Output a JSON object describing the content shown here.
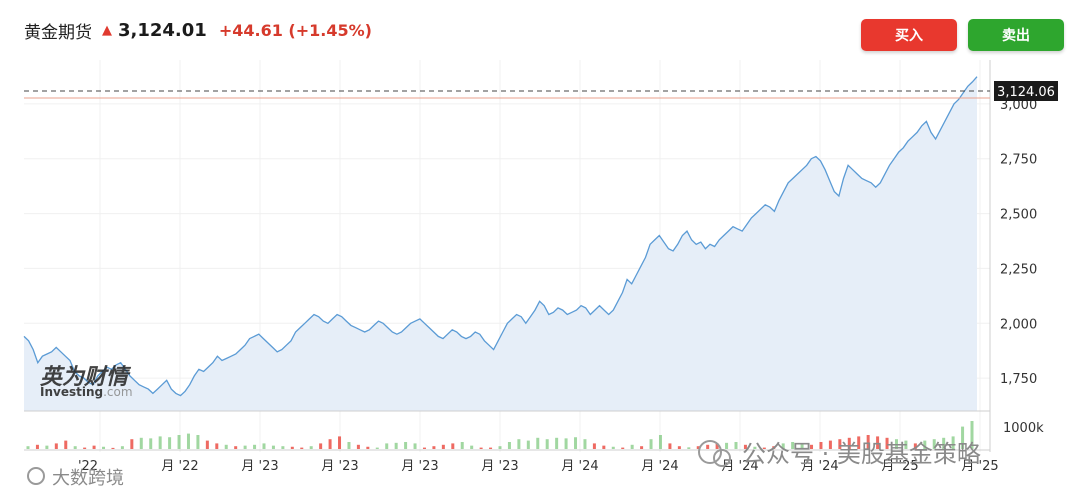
{
  "header": {
    "title": "黄金期货",
    "arrow": "▲",
    "price": "3,124.01",
    "change": "+44.61 (+1.45%)"
  },
  "buttons": {
    "buy": "买入",
    "sell": "卖出"
  },
  "price_marker": "3,124.06",
  "colors": {
    "up": "#e8382e",
    "down": "#2ea62e",
    "line": "#5b9bd5",
    "area": "#e6eef8",
    "marker_bg": "#1a1a1a"
  },
  "watermarks": {
    "logo_cn": "英为财情",
    "logo_en": "Investing",
    "logo_suffix": ".com",
    "wechat": "公众号 · 美股基金策略",
    "bottom_left": "大数跨境"
  },
  "chart_data": {
    "type": "area",
    "title": "",
    "xlabel": "",
    "ylabel": "",
    "ylim": [
      1600,
      3200
    ],
    "y_ticks": [
      "3,000",
      "2,750",
      "2,500",
      "2,250",
      "2,000",
      "1,750"
    ],
    "y_tick_values": [
      3000,
      2750,
      2500,
      2250,
      2000,
      1750
    ],
    "volume_label": "1000k",
    "x_tick_labels": [
      "'22",
      "月 '22",
      "月 '23",
      "月 '23",
      "月 '23",
      "月 '23",
      "月 '24",
      "月 '24",
      "月 '24",
      "月 '24",
      "月 '25",
      "月 '25"
    ],
    "series": [
      {
        "values": [
          1940,
          1920,
          1880,
          1820,
          1850,
          1860,
          1870,
          1890,
          1870,
          1850,
          1830,
          1780,
          1760,
          1750,
          1730,
          1720,
          1760,
          1780,
          1800,
          1790,
          1810,
          1820,
          1790,
          1760,
          1740,
          1720,
          1710,
          1700,
          1680,
          1700,
          1720,
          1740,
          1700,
          1680,
          1670,
          1690,
          1720,
          1760,
          1790,
          1780,
          1800,
          1820,
          1850,
          1830,
          1840,
          1850,
          1860,
          1880,
          1900,
          1930,
          1940,
          1950,
          1930,
          1910,
          1890,
          1870,
          1880,
          1900,
          1920,
          1960,
          1980,
          2000,
          2020,
          2040,
          2030,
          2010,
          2000,
          2020,
          2040,
          2030,
          2010,
          1990,
          1980,
          1970,
          1960,
          1970,
          1990,
          2010,
          2000,
          1980,
          1960,
          1950,
          1960,
          1980,
          2000,
          2010,
          2020,
          2000,
          1980,
          1960,
          1940,
          1930,
          1950,
          1970,
          1960,
          1940,
          1930,
          1940,
          1960,
          1950,
          1920,
          1900,
          1880,
          1920,
          1960,
          2000,
          2020,
          2040,
          2030,
          2000,
          2030,
          2060,
          2100,
          2080,
          2040,
          2050,
          2070,
          2060,
          2040,
          2050,
          2060,
          2080,
          2070,
          2040,
          2060,
          2080,
          2060,
          2040,
          2060,
          2100,
          2140,
          2200,
          2180,
          2220,
          2260,
          2300,
          2360,
          2380,
          2400,
          2370,
          2340,
          2330,
          2360,
          2400,
          2420,
          2380,
          2360,
          2370,
          2340,
          2360,
          2350,
          2380,
          2400,
          2420,
          2440,
          2430,
          2420,
          2450,
          2480,
          2500,
          2520,
          2540,
          2530,
          2510,
          2560,
          2600,
          2640,
          2660,
          2680,
          2700,
          2720,
          2750,
          2760,
          2740,
          2700,
          2650,
          2600,
          2580,
          2660,
          2720,
          2700,
          2680,
          2660,
          2650,
          2640,
          2620,
          2640,
          2680,
          2720,
          2750,
          2780,
          2800,
          2830,
          2850,
          2870,
          2900,
          2920,
          2870,
          2840,
          2880,
          2920,
          2960,
          3000,
          3020,
          3050,
          3080,
          3100,
          3124
        ]
      }
    ],
    "volume": [
      0.1,
      0.15,
      0.12,
      0.2,
      0.3,
      0.1,
      0.05,
      0.12,
      0.08,
      0.04,
      0.1,
      0.35,
      0.4,
      0.38,
      0.45,
      0.42,
      0.5,
      0.55,
      0.5,
      0.3,
      0.2,
      0.15,
      0.1,
      0.12,
      0.15,
      0.2,
      0.12,
      0.1,
      0.08,
      0.05,
      0.1,
      0.2,
      0.35,
      0.45,
      0.25,
      0.15,
      0.08,
      0.05,
      0.2,
      0.22,
      0.25,
      0.2,
      0.05,
      0.1,
      0.15,
      0.2,
      0.25,
      0.12,
      0.05,
      0.05,
      0.1,
      0.25,
      0.35,
      0.3,
      0.4,
      0.35,
      0.4,
      0.38,
      0.42,
      0.35,
      0.2,
      0.12,
      0.08,
      0.05,
      0.15,
      0.1,
      0.35,
      0.5,
      0.2,
      0.1,
      0.06,
      0.1,
      0.15,
      0.2,
      0.22,
      0.25,
      0.15,
      0.08,
      0.05,
      0.1,
      0.2,
      0.25,
      0.2,
      0.15,
      0.25,
      0.3,
      0.35,
      0.4,
      0.45,
      0.5,
      0.45,
      0.4,
      0.35,
      0.3,
      0.2,
      0.3,
      0.35,
      0.4,
      0.45,
      0.8,
      1.0
    ],
    "volume_up": [
      false,
      true,
      false,
      true,
      true,
      false,
      true,
      true,
      false,
      true,
      false,
      true,
      false,
      false,
      false,
      false,
      false,
      false,
      false,
      true,
      true,
      false,
      true,
      false,
      false,
      false,
      false,
      false,
      true,
      true,
      false,
      true,
      true,
      true,
      false,
      true,
      true,
      false,
      false,
      false,
      false,
      false,
      true,
      true,
      true,
      true,
      false,
      false,
      true,
      true,
      false,
      false,
      false,
      false,
      false,
      false,
      false,
      false,
      false,
      false,
      true,
      true,
      false,
      true,
      false,
      true,
      false,
      false,
      true,
      true,
      false,
      true,
      true,
      true,
      false,
      false,
      true,
      false,
      true,
      true,
      false,
      false,
      false,
      true,
      true,
      true,
      true,
      true,
      true,
      true,
      true,
      true,
      false,
      false,
      true,
      false,
      false,
      false,
      false,
      false,
      false
    ]
  }
}
